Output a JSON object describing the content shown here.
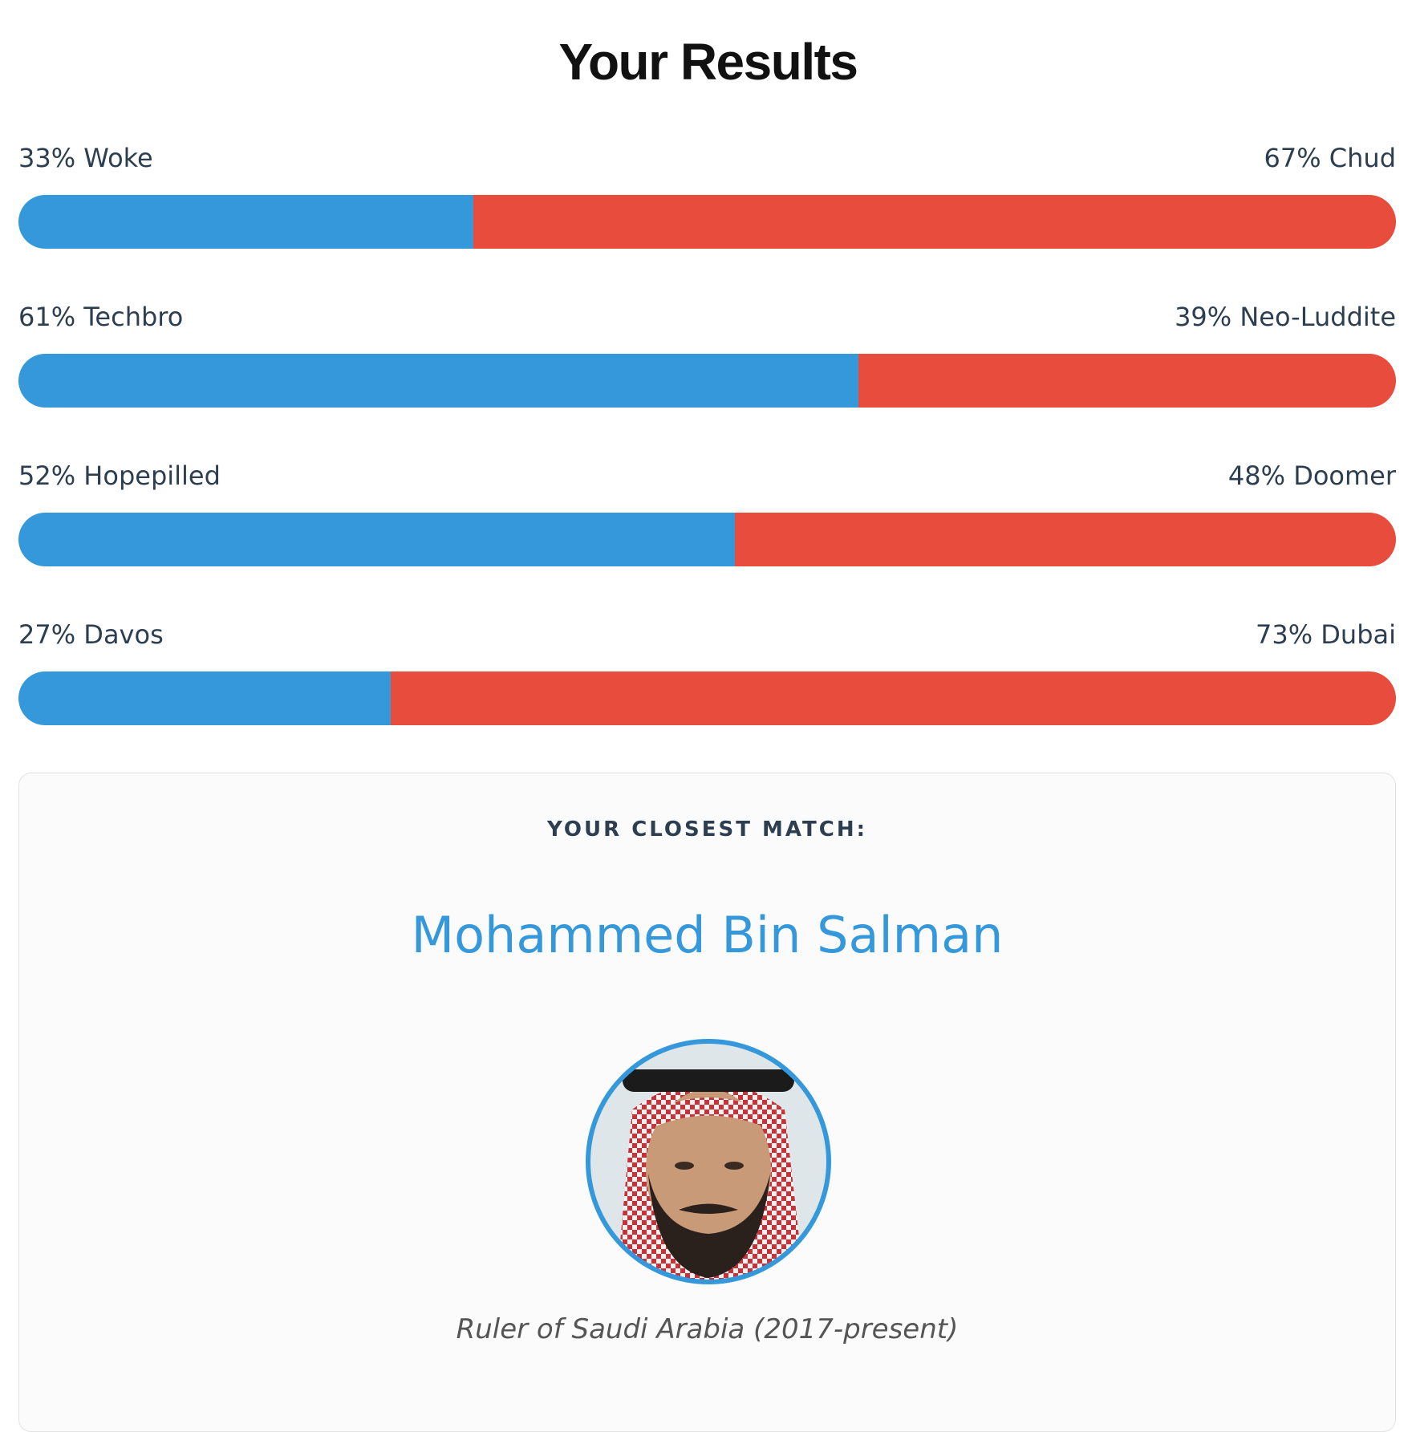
{
  "title": "Your Results",
  "scales": [
    {
      "left_text": "33% Woke",
      "left_value": 33,
      "right_text": "67% Chud",
      "right_value": 67
    },
    {
      "left_text": "61% Techbro",
      "left_value": 61,
      "right_text": "39% Neo-Luddite",
      "right_value": 39
    },
    {
      "left_text": "52% Hopepilled",
      "left_value": 52,
      "right_text": "48% Doomer",
      "right_value": 48
    },
    {
      "left_text": "27% Davos",
      "left_value": 27,
      "right_text": "73% Dubai",
      "right_value": 73
    }
  ],
  "match": {
    "heading": "YOUR CLOSEST MATCH:",
    "name": "Mohammed Bin Salman",
    "description": "Ruler of Saudi Arabia (2017-present)"
  }
}
